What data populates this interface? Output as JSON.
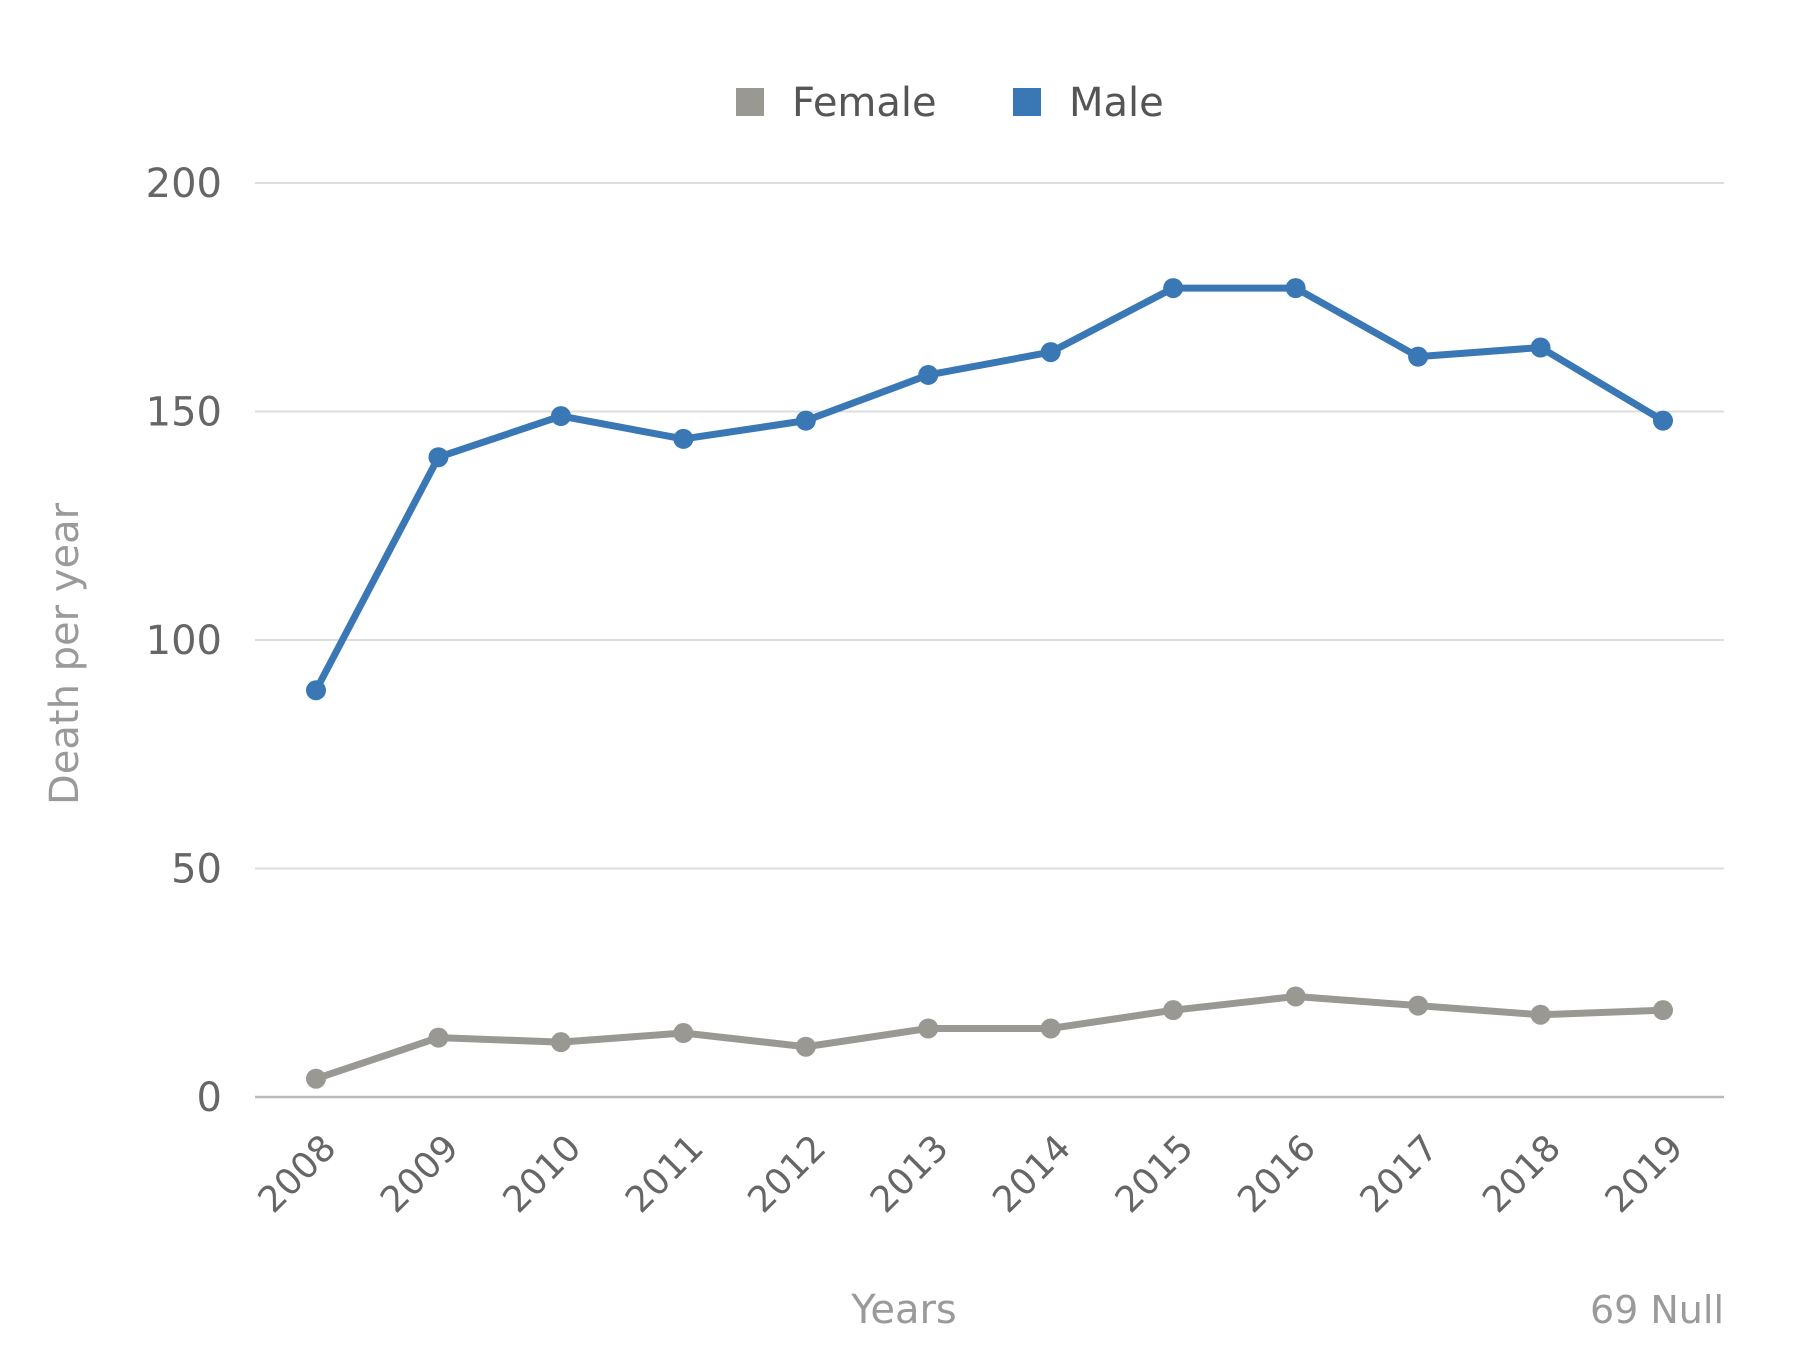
{
  "chart_data": {
    "type": "line",
    "categories": [
      "2008",
      "2009",
      "2010",
      "2011",
      "2012",
      "2013",
      "2014",
      "2015",
      "2016",
      "2017",
      "2018",
      "2019"
    ],
    "series": [
      {
        "name": "Female",
        "color": "#9a9893",
        "values": [
          4,
          13,
          12,
          14,
          11,
          15,
          15,
          19,
          22,
          20,
          18,
          19
        ]
      },
      {
        "name": "Male",
        "color": "#3a78b5",
        "values": [
          89,
          140,
          149,
          144,
          148,
          158,
          163,
          177,
          177,
          162,
          164,
          148
        ]
      }
    ],
    "xlabel": "Years",
    "ylabel": "Death per year",
    "ylim": [
      0,
      200
    ],
    "yticks": [
      "0",
      "50",
      "100",
      "150",
      "200"
    ],
    "grid": true,
    "legend_position": "top-center",
    "footnote": "69 Null"
  }
}
